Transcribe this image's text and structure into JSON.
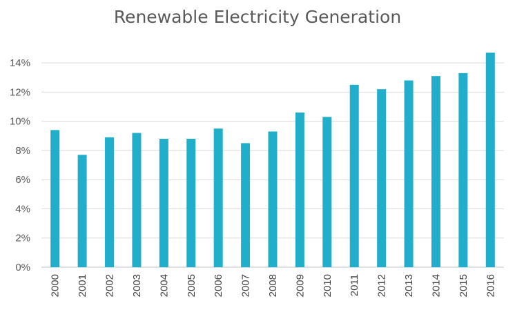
{
  "chart_data": {
    "type": "bar",
    "title": "Renewable Electricity Generation",
    "categories": [
      "2000",
      "2001",
      "2002",
      "2003",
      "2004",
      "2005",
      "2006",
      "2007",
      "2008",
      "2009",
      "2010",
      "2011",
      "2012",
      "2013",
      "2014",
      "2015",
      "2016"
    ],
    "values": [
      9.4,
      7.7,
      8.9,
      9.2,
      8.8,
      8.8,
      9.5,
      8.5,
      9.3,
      10.6,
      10.3,
      12.5,
      12.2,
      12.8,
      13.1,
      13.3,
      14.7
    ],
    "ylim": [
      0,
      15
    ],
    "yticks": [
      0,
      2,
      4,
      6,
      8,
      10,
      12,
      14
    ],
    "ytick_labels": [
      "0%",
      "2%",
      "4%",
      "6%",
      "8%",
      "10%",
      "12%",
      "14%"
    ],
    "xlabel": "",
    "ylabel": "",
    "grid": true,
    "bar_color": "#21AECA"
  }
}
